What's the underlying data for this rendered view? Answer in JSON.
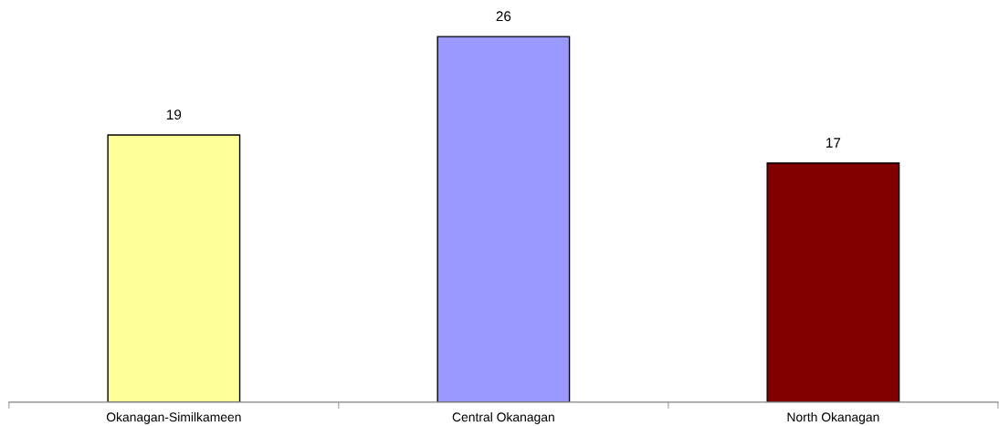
{
  "chart_data": {
    "type": "bar",
    "categories": [
      "Okanagan-Similkameen",
      "Central Okanagan",
      "North Okanagan"
    ],
    "values": [
      19,
      26,
      17
    ],
    "colors": [
      "#ffff99",
      "#9999ff",
      "#800000"
    ],
    "data_labels": true,
    "grid": false,
    "legend": false
  }
}
